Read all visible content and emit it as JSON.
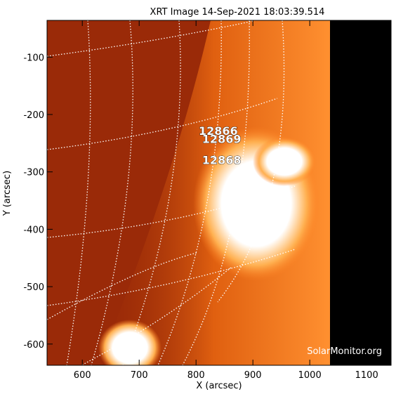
{
  "chart_data": {
    "type": "image",
    "title": "XRT Image 14-Sep-2021 18:03:39.514",
    "xlabel": "X (arcsec)",
    "ylabel": "Y (arcsec)",
    "xlim": [
      538,
      1143
    ],
    "ylim": [
      -637,
      -36
    ],
    "xticks": [
      600,
      700,
      800,
      900,
      1000,
      1100
    ],
    "yticks": [
      -100,
      -200,
      -300,
      -400,
      -500,
      -600
    ],
    "annotations": [
      {
        "text": "12866",
        "x": 839,
        "y": -228
      },
      {
        "text": "12869",
        "x": 845,
        "y": -242
      },
      {
        "text": "12868",
        "x": 845,
        "y": -279
      }
    ],
    "watermark": "SolarMonitor.org"
  }
}
